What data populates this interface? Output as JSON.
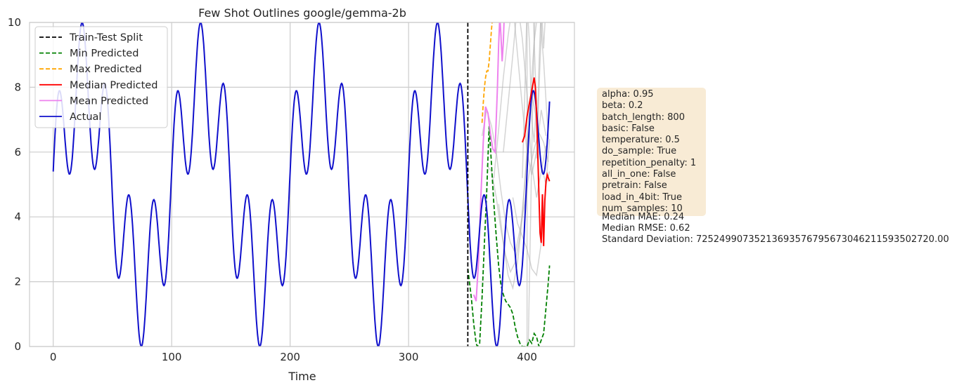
{
  "chart_data": {
    "type": "line",
    "title": "Few Shot Outlines google/gemma-2b",
    "xlabel": "Time",
    "ylabel": "",
    "xlim": [
      -20,
      440
    ],
    "ylim": [
      0,
      10
    ],
    "xticks": [
      0,
      100,
      200,
      300,
      400
    ],
    "yticks": [
      0,
      2,
      4,
      6,
      8,
      10
    ],
    "grid": true,
    "legend_position": "top-left",
    "split_x": 350,
    "actual": {
      "name": "Actual",
      "color": "#1010cc",
      "formula": "5 + 3*sin(2*pi*t/100) + 2*sin(2*pi*t/20 + 0.2)",
      "t_range": [
        0,
        419
      ]
    },
    "series": [
      {
        "name": "Train-Test Split",
        "color": "#000000",
        "style": "dashed"
      },
      {
        "name": "Min Predicted",
        "color": "#008000",
        "style": "dashed",
        "x": [
          350,
          353,
          355,
          357,
          358,
          360,
          362,
          364,
          366,
          368,
          370,
          372,
          374,
          376,
          378,
          380,
          382,
          384,
          386,
          388,
          390,
          392,
          394,
          396,
          398,
          400,
          402,
          404,
          406,
          408,
          410,
          412,
          414,
          416,
          418,
          419
        ],
        "y": [
          2.4,
          1.5,
          0.7,
          0.1,
          0.0,
          0.1,
          1.5,
          3.2,
          4.8,
          6.8,
          5.6,
          4.4,
          3.4,
          2.5,
          1.9,
          1.6,
          1.4,
          1.3,
          1.2,
          1.0,
          0.6,
          0.3,
          0.1,
          0.0,
          0.0,
          0.0,
          0.2,
          0.1,
          0.4,
          0.3,
          0.0,
          0.2,
          0.4,
          1.2,
          2.0,
          2.5
        ]
      },
      {
        "name": "Max Predicted",
        "color": "#ffa500",
        "style": "dashed",
        "x": [
          362,
          363,
          364,
          365,
          366,
          367,
          368,
          369,
          370,
          371,
          372
        ],
        "y": [
          6.9,
          7.5,
          8.0,
          8.3,
          8.5,
          8.5,
          8.8,
          9.3,
          9.8,
          10.2,
          10.6
        ]
      },
      {
        "name": "Median Predicted",
        "color": "#ff0000",
        "style": "solid",
        "x": [
          396,
          398,
          400,
          402,
          404,
          406,
          407,
          408,
          409,
          410,
          411,
          412,
          413,
          414,
          415,
          416,
          417,
          418,
          419
        ],
        "y": [
          6.3,
          6.5,
          7.1,
          7.5,
          7.9,
          8.3,
          8.0,
          7.2,
          6.0,
          4.7,
          3.5,
          3.2,
          4.7,
          3.1,
          4.5,
          5.1,
          5.3,
          5.2,
          5.1
        ]
      },
      {
        "name": "Mean Predicted",
        "color": "#ee82ee",
        "style": "solid",
        "x": [
          355,
          357,
          359,
          361,
          363,
          365,
          367,
          369,
          371,
          373,
          374,
          375,
          376,
          377,
          378,
          379,
          380,
          381
        ],
        "y": [
          1.6,
          1.4,
          2.6,
          4.6,
          6.3,
          7.4,
          7.2,
          6.6,
          6.1,
          6.0,
          7.0,
          8.0,
          9.3,
          10.2,
          9.6,
          8.8,
          9.4,
          10.5
        ]
      },
      {
        "name": "Actual",
        "color": "#1010cc",
        "style": "solid"
      }
    ],
    "sample_lines": [
      {
        "x": [
          362,
          366,
          370,
          374,
          378,
          382,
          386,
          390,
          394,
          398,
          402,
          406,
          410,
          414,
          418
        ],
        "y": [
          6.5,
          7.3,
          6.8,
          6.0,
          4.8,
          3.8,
          3.2,
          2.9,
          3.6,
          4.4,
          5.4,
          6.1,
          6.6,
          6.3,
          5.7
        ]
      },
      {
        "x": [
          366,
          370,
          374,
          378,
          382,
          386,
          390,
          394,
          398,
          402,
          406,
          410,
          414,
          418
        ],
        "y": [
          5.6,
          5.4,
          4.6,
          3.6,
          2.8,
          2.3,
          2.6,
          3.4,
          5.0,
          7.2,
          9.4,
          10.6,
          8.8,
          6.4
        ]
      },
      {
        "x": [
          372,
          376,
          380,
          384,
          388,
          392,
          396,
          400,
          404,
          408,
          412,
          416
        ],
        "y": [
          5.2,
          6.7,
          8.3,
          9.6,
          10.6,
          9.0,
          7.4,
          6.0,
          5.3,
          6.0,
          7.3,
          6.5
        ]
      },
      {
        "x": [
          376,
          380,
          384,
          388,
          392,
          396,
          400,
          404,
          408,
          412,
          416,
          419
        ],
        "y": [
          4.4,
          3.2,
          2.2,
          1.8,
          2.6,
          4.0,
          6.0,
          7.8,
          7.0,
          5.6,
          5.0,
          5.4
        ]
      },
      {
        "x": [
          380,
          384,
          388,
          392,
          396,
          400,
          404,
          408,
          412,
          416
        ],
        "y": [
          6.0,
          7.5,
          9.0,
          10.6,
          9.5,
          7.8,
          5.6,
          4.6,
          5.4,
          6.2
        ]
      },
      {
        "x": [
          388,
          392,
          396,
          400,
          404,
          408,
          412,
          416,
          419
        ],
        "y": [
          4.6,
          3.8,
          3.4,
          3.0,
          2.4,
          2.2,
          3.2,
          5.0,
          6.4
        ]
      },
      {
        "x": [
          396,
          398,
          400,
          402,
          404,
          406,
          408
        ],
        "y": [
          5.2,
          7.6,
          10.6,
          9.4,
          7.0,
          6.3,
          7.6
        ]
      },
      {
        "x": [
          401,
          403,
          405,
          407
        ],
        "y": [
          0.0,
          4.0,
          8.0,
          10.6
        ]
      },
      {
        "x": [
          405,
          407,
          409,
          411,
          413
        ],
        "y": [
          10.6,
          8.4,
          6.8,
          8.8,
          10.6
        ]
      },
      {
        "x": [
          408,
          410,
          412,
          414,
          416
        ],
        "y": [
          5.8,
          8.6,
          10.6,
          9.2,
          10.6
        ]
      }
    ]
  },
  "legend": [
    {
      "label": "Train-Test Split",
      "color": "#000000",
      "dashed": true
    },
    {
      "label": "Min Predicted",
      "color": "#008000",
      "dashed": true
    },
    {
      "label": "Max Predicted",
      "color": "#ffa500",
      "dashed": true
    },
    {
      "label": "Median Predicted",
      "color": "#ff0000",
      "dashed": false
    },
    {
      "label": "Mean Predicted",
      "color": "#ee82ee",
      "dashed": false
    },
    {
      "label": "Actual",
      "color": "#1010cc",
      "dashed": false
    }
  ],
  "params": [
    "alpha: 0.95",
    "beta: 0.2",
    "batch_length: 800",
    "basic: False",
    "temperature: 0.5",
    "do_sample: True",
    "repetition_penalty: 1",
    "all_in_one: False",
    "pretrain: False",
    "load_in_4bit: True",
    "num_samples: 10"
  ],
  "metrics": [
    "Median MAE: 0.24",
    "Median RMSE: 0.62",
    "Standard Deviation: 72524990735213693576795673046211593502720.00"
  ]
}
